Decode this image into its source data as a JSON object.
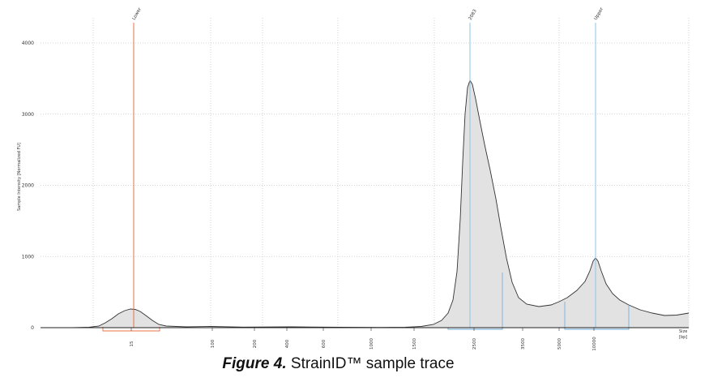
{
  "caption": {
    "figure_label": "Figure 4.",
    "text": "StrainID™ sample trace"
  },
  "chart_data": {
    "type": "line",
    "ylabel": "Sample Intensity [Normalized FU]",
    "xlabel": "Size [bp]",
    "ylim": [
      0,
      4300
    ],
    "y_ticks": [
      "0",
      "1000",
      "2000",
      "3000",
      "4000"
    ],
    "x_ticks": [
      "15",
      "100",
      "200",
      "400",
      "600",
      "1000",
      "1500",
      "2500",
      "3500",
      "5000",
      "10000"
    ],
    "grid": true,
    "markers": [
      {
        "label": "Lower",
        "color": "#e8704a"
      },
      {
        "label": "2083",
        "color": "#8fc4e8"
      },
      {
        "label": "Upper",
        "color": "#8fc4e8"
      }
    ],
    "series": [
      {
        "values": [
          {
            "x": "15",
            "y": 240
          },
          {
            "x": "100",
            "y": 15
          },
          {
            "x": "1500",
            "y": 10
          },
          {
            "x": "2083",
            "y": 3480
          },
          {
            "x": "3500",
            "y": 290
          },
          {
            "x": "10000",
            "y": 1000
          }
        ]
      }
    ]
  }
}
